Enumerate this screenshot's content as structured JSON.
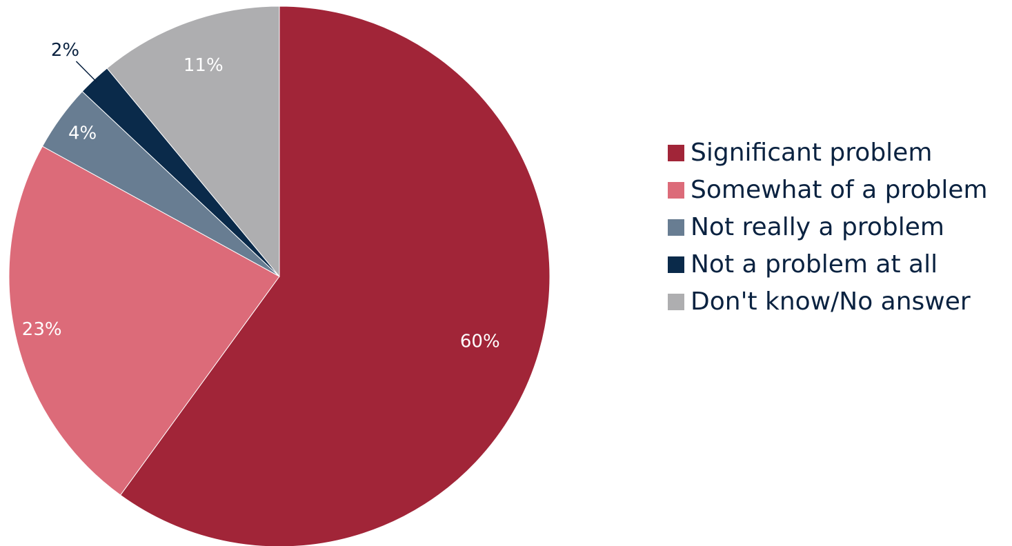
{
  "chart_data": {
    "type": "pie",
    "start": "12 o'clock",
    "direction": "clockwise",
    "legend_position": "right",
    "slices": [
      {
        "label": "Significant problem",
        "value": 60,
        "value_label": "60%",
        "color": "#a12538",
        "label_color": "#ffffff"
      },
      {
        "label": "Somewhat of a problem",
        "value": 23,
        "value_label": "23%",
        "color": "#dc6b79",
        "label_color": "#ffffff"
      },
      {
        "label": "Not really a problem",
        "value": 4,
        "value_label": "4%",
        "color": "#687d92",
        "label_color": "#ffffff"
      },
      {
        "label": "Not a problem at all",
        "value": 2,
        "value_label": "2%",
        "color": "#0a2a4a",
        "label_color": "#0a2240",
        "label_outside": true
      },
      {
        "label": "Don't know/No answer",
        "value": 11,
        "value_label": "11%",
        "color": "#aeaeb0",
        "label_color": "#ffffff"
      }
    ],
    "legend_text_color": "#0a2240"
  }
}
